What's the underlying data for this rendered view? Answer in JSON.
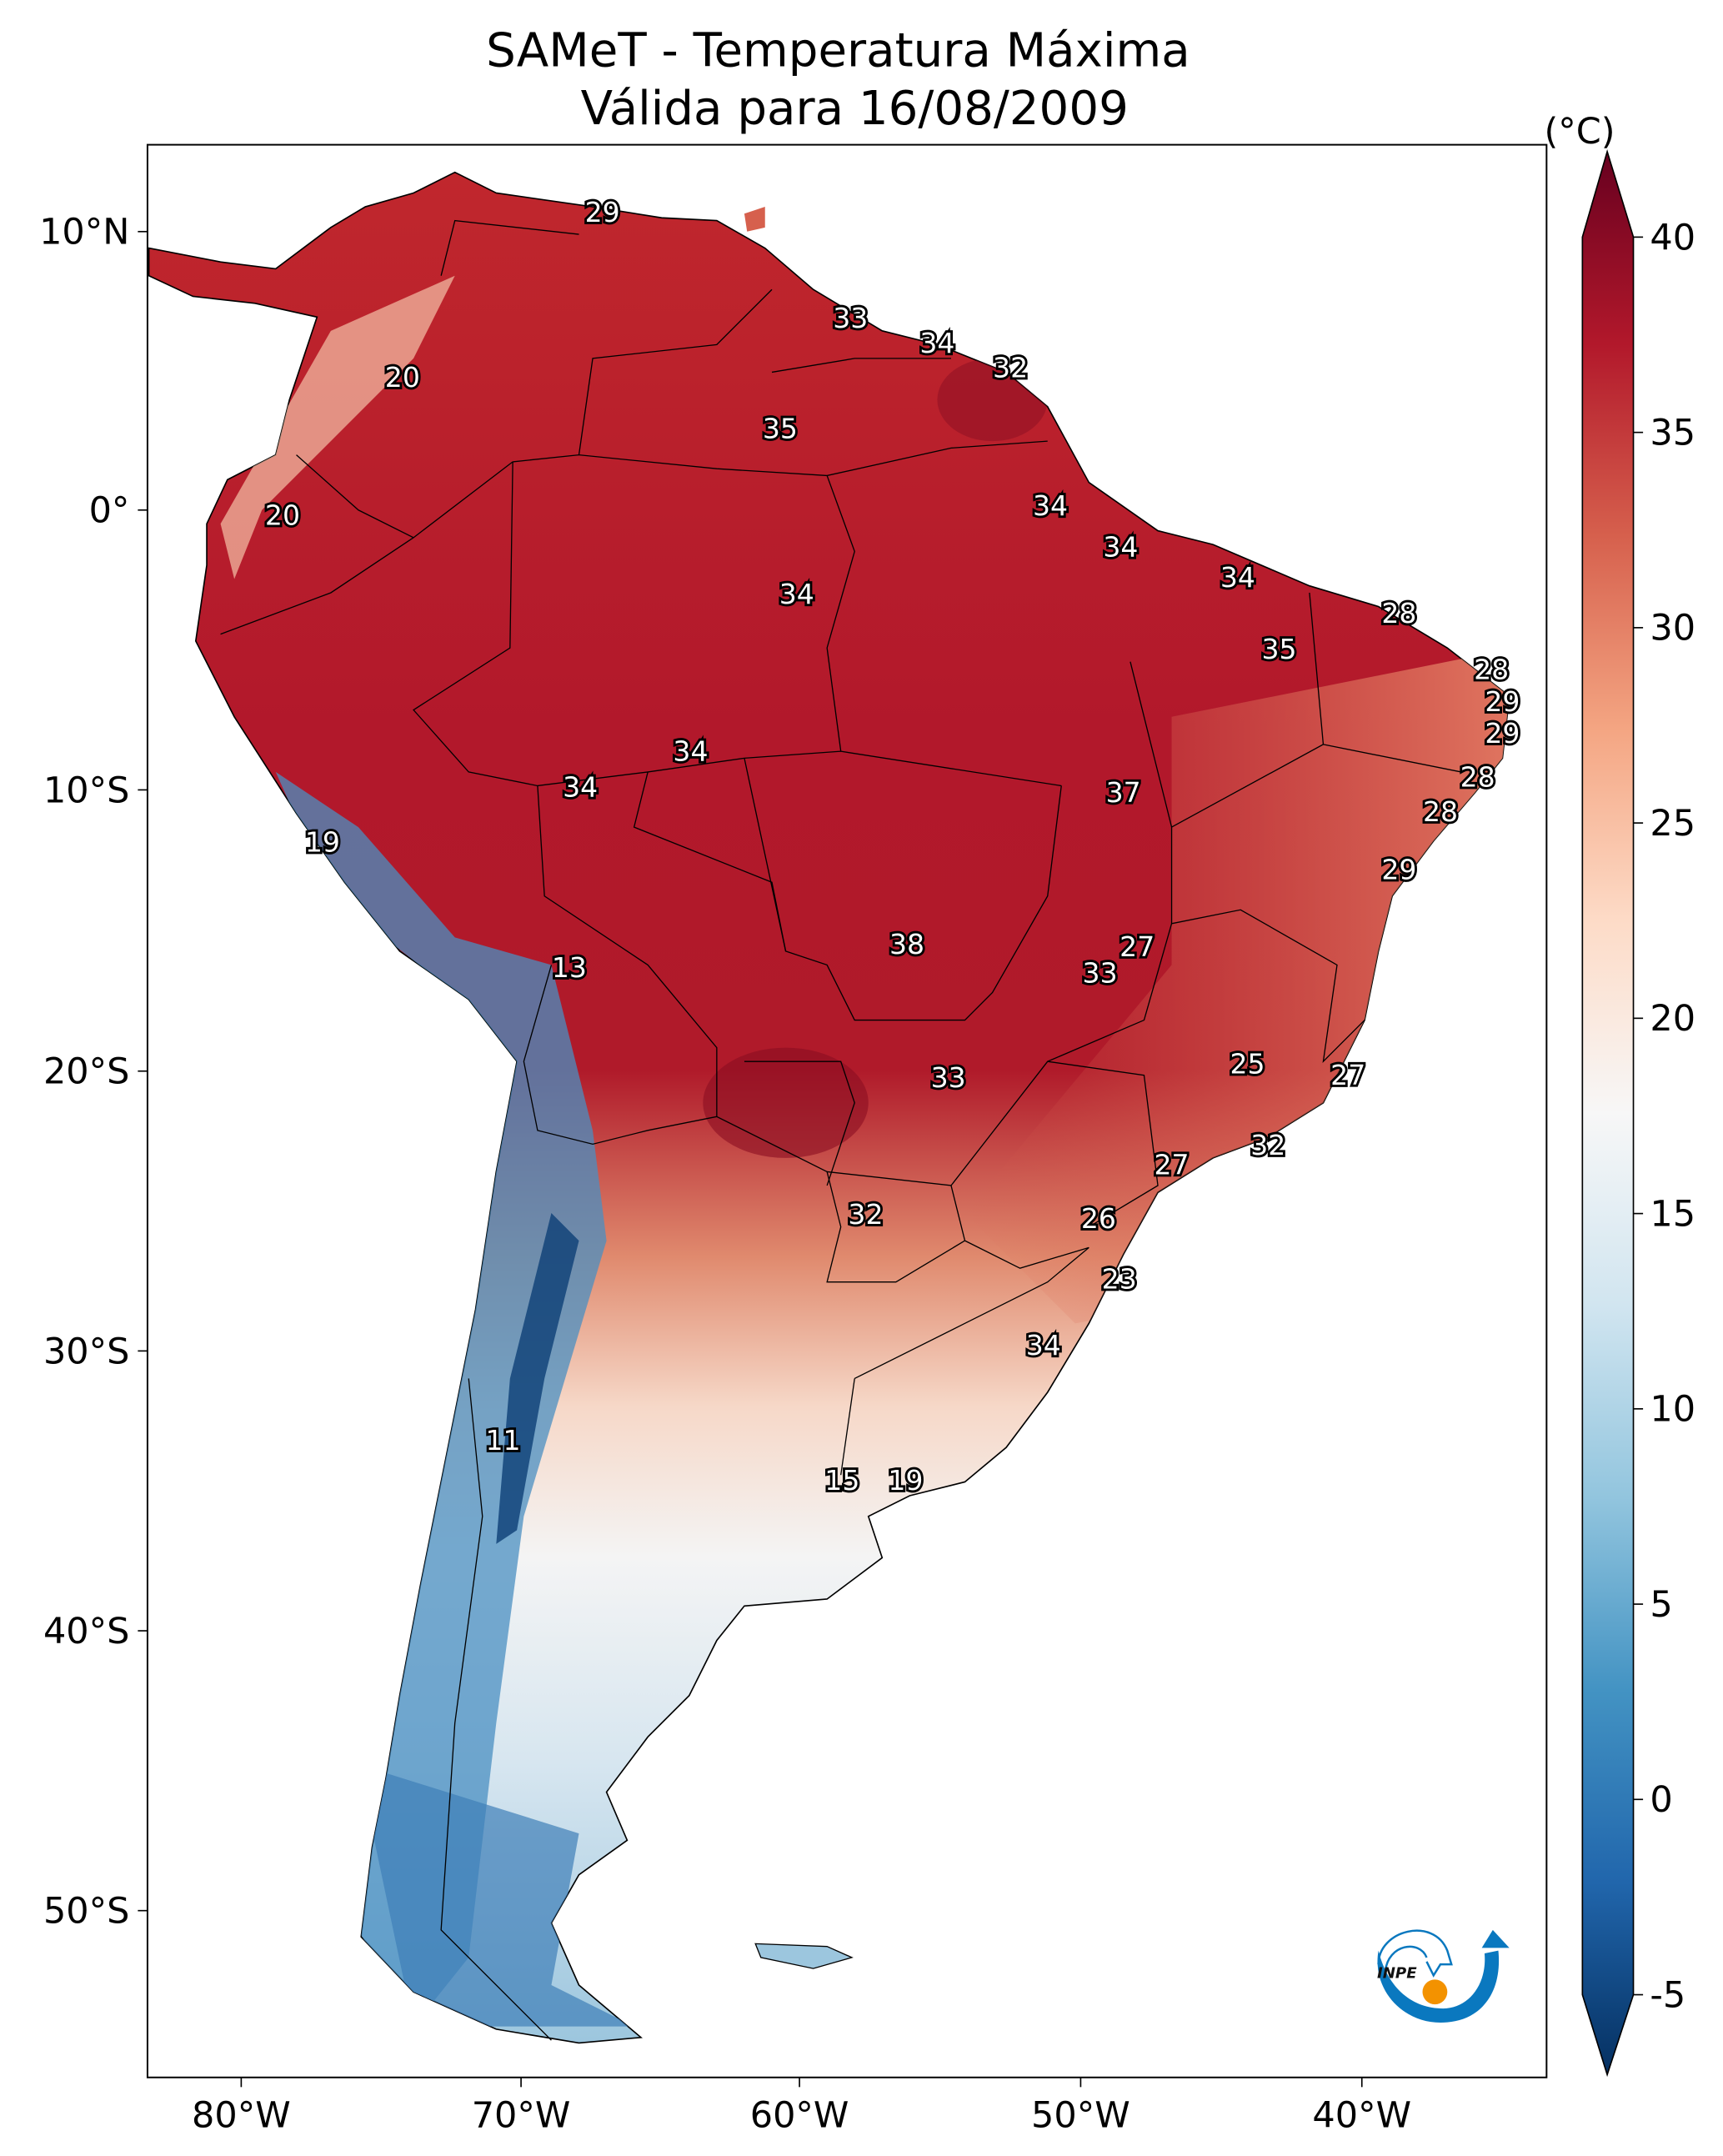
{
  "title": {
    "line1": "SAMeT - Temperatura Máxima",
    "line2": "Válida para 16/08/2009"
  },
  "colorbar": {
    "unit": "(°C)",
    "ticks": [
      "40",
      "35",
      "30",
      "25",
      "20",
      "15",
      "10",
      "5",
      "0",
      "-5"
    ],
    "colors": [
      "#67001f",
      "#b2182b",
      "#d6604d",
      "#f4a582",
      "#fddbc7",
      "#f7f7f7",
      "#d1e5f0",
      "#92c5de",
      "#4393c3",
      "#2166ac",
      "#053061"
    ]
  },
  "axes": {
    "lat_ticks": [
      "10°N",
      "0°",
      "10°S",
      "20°S",
      "30°S",
      "40°S",
      "50°S"
    ],
    "lon_ticks": [
      "80°W",
      "70°W",
      "60°W",
      "50°W",
      "40°W"
    ]
  },
  "logo": {
    "text": "INPE",
    "colors": {
      "blue": "#0a78bf",
      "orange": "#f39200"
    }
  },
  "station_labels": [
    "29",
    "20",
    "33",
    "34",
    "32",
    "35",
    "20",
    "34",
    "34",
    "34",
    "34",
    "28",
    "35",
    "28",
    "29",
    "29",
    "34",
    "34",
    "37",
    "28",
    "28",
    "19",
    "29",
    "27",
    "38",
    "13",
    "33",
    "25",
    "27",
    "33",
    "32",
    "27",
    "32",
    "26",
    "23",
    "34",
    "11",
    "15",
    "19"
  ]
}
